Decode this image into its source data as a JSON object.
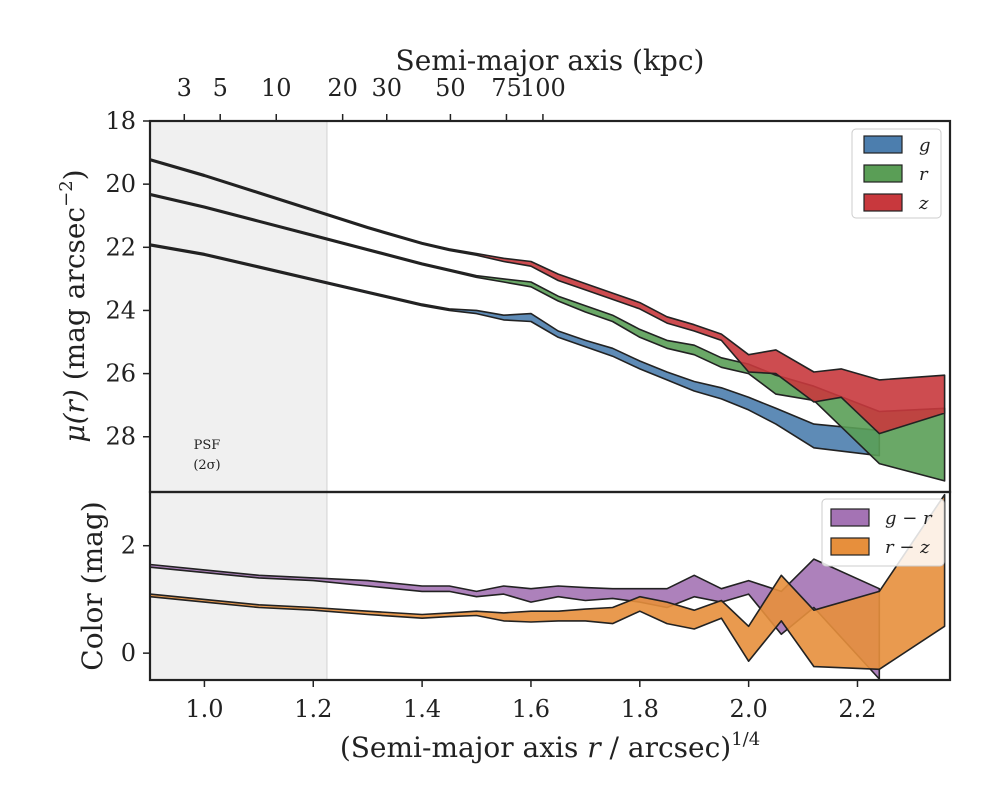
{
  "chart_data": {
    "type": "area",
    "x_label_main": "(Semi-major axis ",
    "x_label_var": "r",
    "x_label_unit": " / arcsec)",
    "x_label_exp": "1/4",
    "top_axis_label": "Semi-major axis (kpc)",
    "top_ticks": [
      {
        "label": "3",
        "x": 0.963
      },
      {
        "label": "5",
        "x": 1.029
      },
      {
        "label": "10",
        "x": 1.132
      },
      {
        "label": "20",
        "x": 1.254
      },
      {
        "label": "30",
        "x": 1.335
      },
      {
        "label": "50",
        "x": 1.452
      },
      {
        "label": "75",
        "x": 1.555
      },
      {
        "label": "100",
        "x": 1.622
      }
    ],
    "xlim": [
      0.9,
      2.37
    ],
    "x_ticks": [
      {
        "value": 1.0,
        "label": "1.0"
      },
      {
        "value": 1.2,
        "label": "1.2"
      },
      {
        "value": 1.4,
        "label": "1.4"
      },
      {
        "value": 1.6,
        "label": "1.6"
      },
      {
        "value": 1.8,
        "label": "1.8"
      },
      {
        "value": 2.0,
        "label": "2.0"
      },
      {
        "value": 2.2,
        "label": "2.2"
      }
    ],
    "psf_region": {
      "x_end": 1.225,
      "label_line1": "PSF",
      "label_line2": "(2σ)"
    },
    "top_panel": {
      "ylabel_sym": "μ",
      "ylabel_var": "(r)",
      "ylabel_unit": " (mag arcsec",
      "ylabel_exp": "−2",
      "ylabel_close": ")",
      "ylim": [
        18,
        29.75
      ],
      "y_ticks": [
        {
          "value": 18,
          "label": "18"
        },
        {
          "value": 20,
          "label": "20"
        },
        {
          "value": 22,
          "label": "22"
        },
        {
          "value": 24,
          "label": "24"
        },
        {
          "value": 26,
          "label": "26"
        },
        {
          "value": 28,
          "label": "28"
        }
      ],
      "legend": [
        {
          "label": "g",
          "color": "#4c7eae"
        },
        {
          "label": "r",
          "color": "#5a9e56"
        },
        {
          "label": "z",
          "color": "#c8383d"
        }
      ],
      "series": [
        {
          "name": "g",
          "color": "#4c7eae",
          "x": [
            0.9,
            1.0,
            1.1,
            1.2,
            1.3,
            1.4,
            1.45,
            1.5,
            1.55,
            1.6,
            1.65,
            1.7,
            1.75,
            1.8,
            1.85,
            1.9,
            1.95,
            2.0,
            2.05,
            2.12,
            2.24
          ],
          "lower": [
            21.9,
            22.2,
            22.6,
            23.0,
            23.4,
            23.8,
            23.95,
            24.0,
            24.15,
            24.1,
            24.65,
            24.95,
            25.2,
            25.6,
            25.95,
            26.25,
            26.45,
            26.75,
            27.1,
            27.6,
            27.8
          ],
          "upper": [
            21.95,
            22.25,
            22.65,
            23.05,
            23.45,
            23.85,
            24.0,
            24.1,
            24.3,
            24.35,
            24.85,
            25.15,
            25.45,
            25.85,
            26.2,
            26.55,
            26.8,
            27.15,
            27.6,
            28.35,
            28.6
          ]
        },
        {
          "name": "r",
          "color": "#5a9e56",
          "x": [
            0.9,
            1.0,
            1.1,
            1.2,
            1.3,
            1.4,
            1.45,
            1.5,
            1.55,
            1.6,
            1.65,
            1.7,
            1.75,
            1.8,
            1.85,
            1.9,
            1.95,
            2.0,
            2.05,
            2.12,
            2.24,
            2.36
          ],
          "lower": [
            20.3,
            20.7,
            21.15,
            21.6,
            22.05,
            22.5,
            22.7,
            22.9,
            23.0,
            23.1,
            23.55,
            23.85,
            24.15,
            24.6,
            24.95,
            25.1,
            25.5,
            25.7,
            26.05,
            26.4,
            27.2,
            27.1
          ],
          "upper": [
            20.35,
            20.75,
            21.2,
            21.65,
            22.1,
            22.55,
            22.75,
            22.95,
            23.1,
            23.25,
            23.7,
            24.05,
            24.35,
            24.85,
            25.2,
            25.4,
            25.8,
            26.0,
            26.65,
            26.85,
            28.85,
            29.4
          ]
        },
        {
          "name": "z",
          "color": "#c8383d",
          "x": [
            0.9,
            1.0,
            1.1,
            1.2,
            1.3,
            1.4,
            1.45,
            1.5,
            1.55,
            1.6,
            1.65,
            1.7,
            1.75,
            1.8,
            1.85,
            1.9,
            1.95,
            2.0,
            2.05,
            2.12,
            2.17,
            2.24,
            2.36
          ],
          "lower": [
            19.2,
            19.7,
            20.25,
            20.8,
            21.35,
            21.85,
            22.05,
            22.2,
            22.35,
            22.45,
            22.85,
            23.15,
            23.45,
            23.75,
            24.2,
            24.45,
            24.75,
            25.4,
            25.25,
            25.95,
            25.85,
            26.2,
            26.05
          ],
          "upper": [
            19.25,
            19.75,
            20.3,
            20.85,
            21.4,
            21.9,
            22.1,
            22.25,
            22.45,
            22.6,
            23.05,
            23.35,
            23.65,
            23.95,
            24.4,
            24.65,
            24.95,
            25.95,
            26.0,
            26.9,
            26.75,
            27.9,
            27.25
          ]
        }
      ]
    },
    "bottom_panel": {
      "ylabel": "Color (mag)",
      "ylim": [
        -0.5,
        3.0
      ],
      "y_ticks": [
        {
          "value": 0,
          "label": "0"
        },
        {
          "value": 2,
          "label": "2"
        }
      ],
      "legend": [
        {
          "label": "g − r",
          "color": "#a473b4"
        },
        {
          "label": "r − z",
          "color": "#e78f3c"
        }
      ],
      "series": [
        {
          "name": "g − r",
          "color": "#a473b4",
          "x": [
            0.9,
            1.0,
            1.1,
            1.2,
            1.3,
            1.4,
            1.45,
            1.5,
            1.55,
            1.6,
            1.65,
            1.7,
            1.75,
            1.8,
            1.85,
            1.9,
            1.95,
            2.0,
            2.06,
            2.12,
            2.24
          ],
          "lower": [
            1.6,
            1.5,
            1.4,
            1.35,
            1.25,
            1.15,
            1.15,
            1.05,
            1.1,
            0.95,
            1.05,
            0.98,
            1.02,
            0.95,
            0.85,
            1.05,
            0.95,
            1.1,
            0.35,
            0.85,
            -0.5
          ],
          "upper": [
            1.65,
            1.55,
            1.45,
            1.4,
            1.35,
            1.25,
            1.25,
            1.15,
            1.25,
            1.2,
            1.25,
            1.22,
            1.2,
            1.2,
            1.2,
            1.45,
            1.2,
            1.35,
            1.15,
            1.75,
            1.2
          ]
        },
        {
          "name": "r − z",
          "color": "#e78f3c",
          "x": [
            0.9,
            1.0,
            1.1,
            1.2,
            1.3,
            1.4,
            1.45,
            1.5,
            1.55,
            1.6,
            1.65,
            1.7,
            1.75,
            1.8,
            1.85,
            1.9,
            1.95,
            2.0,
            2.06,
            2.12,
            2.24,
            2.36
          ],
          "lower": [
            1.05,
            0.95,
            0.85,
            0.8,
            0.72,
            0.65,
            0.68,
            0.7,
            0.6,
            0.58,
            0.6,
            0.6,
            0.55,
            0.78,
            0.55,
            0.45,
            0.65,
            -0.15,
            0.6,
            -0.25,
            -0.3,
            0.5
          ],
          "upper": [
            1.1,
            1.0,
            0.9,
            0.85,
            0.78,
            0.72,
            0.75,
            0.78,
            0.75,
            0.78,
            0.78,
            0.82,
            0.85,
            1.05,
            0.95,
            0.8,
            0.98,
            0.5,
            1.45,
            0.8,
            1.15,
            2.95
          ]
        }
      ]
    }
  }
}
